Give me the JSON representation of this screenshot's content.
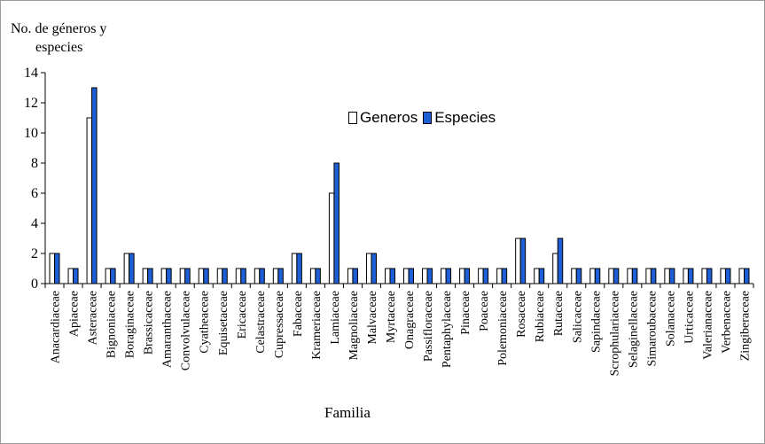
{
  "chart_data": {
    "type": "bar",
    "ylabel_lines": [
      "No. de géneros y",
      "especies"
    ],
    "xlabel": "Familia",
    "ylim": [
      0,
      14
    ],
    "yticks": [
      0,
      2,
      4,
      6,
      8,
      10,
      12,
      14
    ],
    "grid": false,
    "legend_position": "upper-center",
    "categories": [
      "Anacardiaceae",
      "Apiaceae",
      "Asteraceae",
      "Bignoniaceae",
      "Boraginaceae",
      "Brassicaceae",
      "Amaranthaceae",
      "Convolvulaceae",
      "Cyatheaceae",
      "Equisetaceae",
      "Ericaceae",
      "Celastraceae",
      "Cupressaceae",
      "Fabaceae",
      "Krameriaceae",
      "Lamiaceae",
      "Magnoliaceae",
      "Malvaceae",
      "Myrtaceae",
      "Onagraceae",
      "Passifloraceae",
      "Pentaphylaceae",
      "Pinaceae",
      "Poaceae",
      "Polemoniaceae",
      "Rosaceae",
      "Rubiaceae",
      "Rutaceae",
      "Salicaceae",
      "Sapindaceae",
      "Scrophulariaceae",
      "Selaginellaceae",
      "Simaroubaceae",
      "Solanaceae",
      "Urticaceae",
      "Valerianaceae",
      "Verbenaceae",
      "Zingiberaceae"
    ],
    "series": [
      {
        "name": "Generos",
        "color": "#ffffff",
        "values": [
          2,
          1,
          11,
          1,
          2,
          1,
          1,
          1,
          1,
          1,
          1,
          1,
          1,
          2,
          1,
          6,
          1,
          2,
          1,
          1,
          1,
          1,
          1,
          1,
          1,
          3,
          1,
          2,
          1,
          1,
          1,
          1,
          1,
          1,
          1,
          1,
          1,
          1
        ]
      },
      {
        "name": "Especies",
        "color": "#1f5fd6",
        "values": [
          2,
          1,
          13,
          1,
          2,
          1,
          1,
          1,
          1,
          1,
          1,
          1,
          1,
          2,
          1,
          8,
          1,
          2,
          1,
          1,
          1,
          1,
          1,
          1,
          1,
          3,
          1,
          3,
          1,
          1,
          1,
          1,
          1,
          1,
          1,
          1,
          1,
          1
        ]
      }
    ]
  }
}
